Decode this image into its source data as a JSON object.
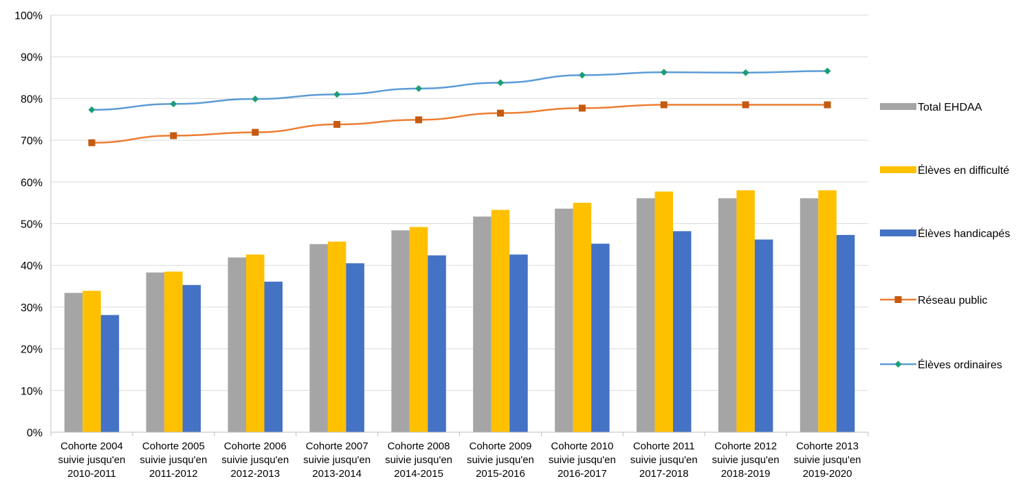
{
  "chart_data": {
    "type": "bar",
    "title": "",
    "xlabel": "",
    "ylabel": "",
    "ylim": [
      0,
      100
    ],
    "yticks": [
      "0%",
      "10%",
      "20%",
      "30%",
      "40%",
      "50%",
      "60%",
      "70%",
      "80%",
      "90%",
      "100%"
    ],
    "grid": true,
    "legend_position": "right",
    "categories": [
      [
        "Cohorte 2004",
        "suivie jusqu'en",
        "2010-2011"
      ],
      [
        "Cohorte 2005",
        "suivie jusqu'en",
        "2011-2012"
      ],
      [
        "Cohorte 2006",
        "suivie jusqu'en",
        "2012-2013"
      ],
      [
        "Cohorte 2007",
        "suivie jusqu'en",
        "2013-2014"
      ],
      [
        "Cohorte 2008",
        "suivie jusqu'en",
        "2014-2015"
      ],
      [
        "Cohorte 2009",
        "suivie jusqu'en",
        "2015-2016"
      ],
      [
        "Cohorte 2010",
        "suivie jusqu'en",
        "2016-2017"
      ],
      [
        "Cohorte 2011",
        "suivie jusqu'en",
        "2017-2018"
      ],
      [
        "Cohorte 2012",
        "suivie jusqu'en",
        "2018-2019"
      ],
      [
        "Cohorte 2013",
        "suivie jusqu'en",
        "2019-2020"
      ]
    ],
    "series": [
      {
        "name": "Total  EHDAA",
        "kind": "bar",
        "color": "#a5a5a5",
        "values": [
          33.4,
          38.3,
          41.9,
          45.1,
          48.4,
          51.7,
          53.6,
          56.1,
          56.1,
          56.1
        ]
      },
      {
        "name": "Élèves en difficulté",
        "kind": "bar",
        "color": "#ffc000",
        "values": [
          33.9,
          38.5,
          42.6,
          45.7,
          49.2,
          53.3,
          55.0,
          57.7,
          58.0,
          58.0
        ]
      },
      {
        "name": "Élèves handicapés",
        "kind": "bar",
        "color": "#4472c4",
        "values": [
          28.1,
          35.3,
          36.1,
          40.5,
          42.4,
          42.6,
          45.2,
          48.2,
          46.2,
          47.3
        ]
      },
      {
        "name": "Réseau public",
        "kind": "line",
        "marker": "square",
        "color": "#ed7d31",
        "marker_color": "#c55a11",
        "values": [
          69.4,
          71.1,
          71.9,
          73.8,
          74.9,
          76.5,
          77.7,
          78.5,
          78.5,
          78.5
        ]
      },
      {
        "name": "Élèves ordinaires",
        "kind": "line",
        "marker": "diamond",
        "color": "#5b9bd5",
        "marker_color": "#1b9e77",
        "values": [
          77.3,
          78.7,
          79.9,
          81.0,
          82.4,
          83.8,
          85.6,
          86.3,
          86.2,
          86.6
        ]
      }
    ]
  }
}
